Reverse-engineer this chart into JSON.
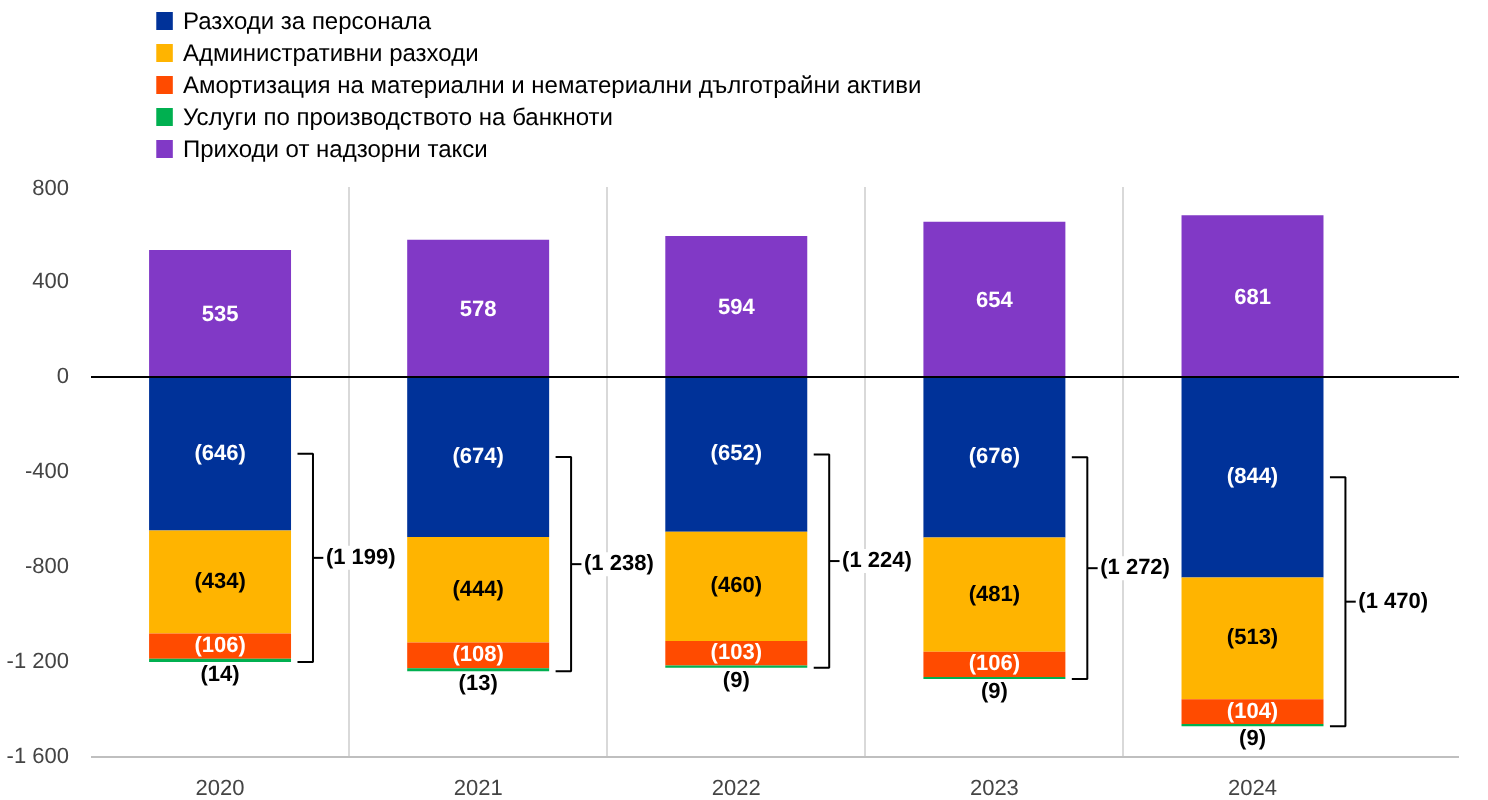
{
  "chart_data": {
    "type": "bar",
    "stacked": true,
    "categories": [
      "2020",
      "2021",
      "2022",
      "2023",
      "2024"
    ],
    "series": [
      {
        "name": "Разходи за персонала",
        "color": "#003299",
        "values": [
          -646,
          -674,
          -652,
          -676,
          -844
        ],
        "value_labels": [
          "(646)",
          "(674)",
          "(652)",
          "(676)",
          "(844)"
        ]
      },
      {
        "name": "Административни разходи",
        "color": "#ffb400",
        "values": [
          -434,
          -444,
          -460,
          -481,
          -513
        ],
        "value_labels": [
          "(434)",
          "(444)",
          "(460)",
          "(481)",
          "(513)"
        ]
      },
      {
        "name": "Амортизация на материални и нематериални дълготрайни активи",
        "color": "#ff4b00",
        "values": [
          -106,
          -108,
          -103,
          -106,
          -104
        ],
        "value_labels": [
          "(106)",
          "(108)",
          "(103)",
          "(106)",
          "(104)"
        ]
      },
      {
        "name": "Услуги по производството на банкноти",
        "color": "#00b050",
        "values": [
          -14,
          -13,
          -9,
          -9,
          -9
        ],
        "value_labels": [
          "(14)",
          "(13)",
          "(9)",
          "(9)",
          "(9)"
        ]
      },
      {
        "name": "Приходи от надзорни такси",
        "color": "#8139c6",
        "values": [
          535,
          578,
          594,
          654,
          681
        ],
        "value_labels": [
          "535",
          "578",
          "594",
          "654",
          "681"
        ]
      }
    ],
    "annotations": [
      "(1 199)",
      "(1 238)",
      "(1 224)",
      "(1 272)",
      "(1 470)"
    ],
    "ylim": [
      -1600,
      800
    ],
    "yticks": [
      {
        "value": -1600,
        "label": "-1 600"
      },
      {
        "value": -1200,
        "label": "-1 200"
      },
      -800,
      -400,
      0,
      400,
      800
    ],
    "grid": "x",
    "legend": "top left"
  }
}
